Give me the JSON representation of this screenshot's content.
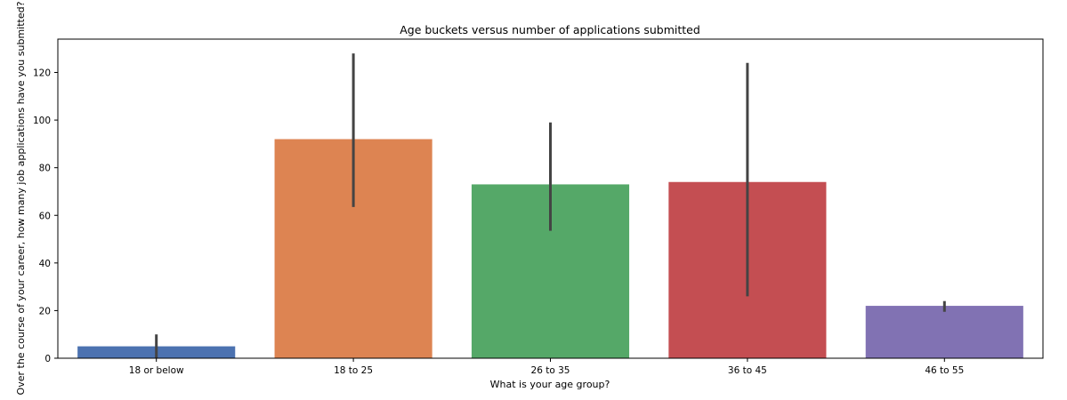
{
  "chart_data": {
    "type": "bar",
    "title": "Age buckets versus number of applications submitted",
    "xlabel": "What is your age group?",
    "ylabel": "Over the course of your career, how many job applications have you submitted?",
    "categories": [
      "18 or below",
      "18 to 25",
      "26 to 35",
      "36 to 45",
      "46 to 55"
    ],
    "values": [
      5,
      92,
      73,
      74,
      22
    ],
    "error_bars": [
      {
        "low": 0,
        "high": 10
      },
      {
        "low": 63.5,
        "high": 128
      },
      {
        "low": 53.5,
        "high": 99
      },
      {
        "low": 26,
        "high": 124
      },
      {
        "low": 19.5,
        "high": 24
      }
    ],
    "colors": [
      "#4c72b0",
      "#dd8452",
      "#55a868",
      "#c44e52",
      "#8172b3"
    ],
    "ylim": [
      0,
      134
    ],
    "yticks": [
      0,
      20,
      40,
      60,
      80,
      100,
      120
    ],
    "grid": false,
    "legend": false
  }
}
